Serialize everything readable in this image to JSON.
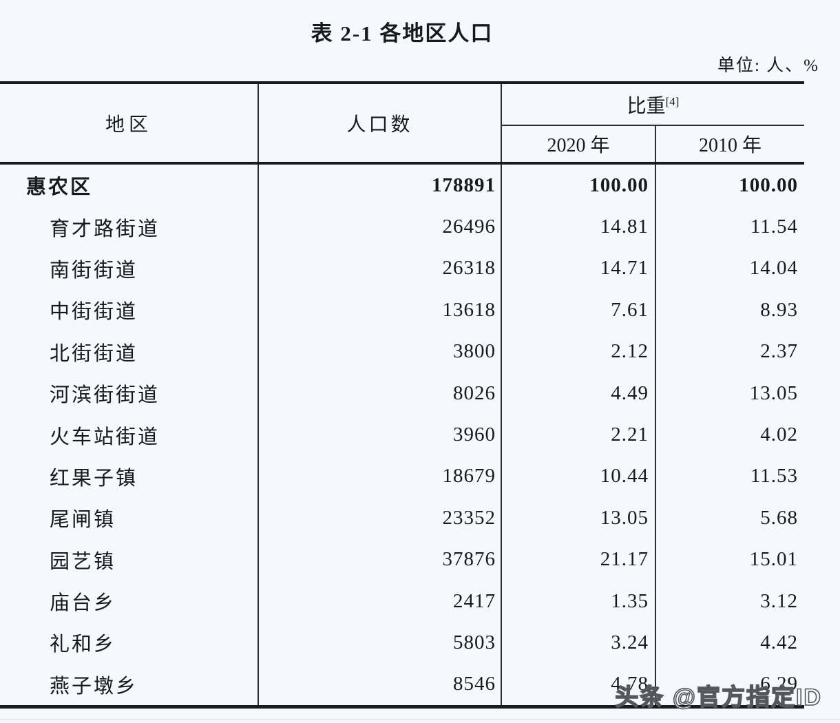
{
  "title": "表 2-1  各地区人口",
  "unit_label": "单位: 人、%",
  "table": {
    "headers": {
      "region": "地区",
      "population": "人口数",
      "share": "比重",
      "share_superscript": "[4]",
      "year_2020": "2020 年",
      "year_2010": "2010 年"
    },
    "rows": [
      {
        "region": "惠农区",
        "population": "178891",
        "share_2020": "100.00",
        "share_2010": "100.00",
        "bold": true
      },
      {
        "region": "育才路街道",
        "population": "26496",
        "share_2020": "14.81",
        "share_2010": "11.54"
      },
      {
        "region": "南街街道",
        "population": "26318",
        "share_2020": "14.71",
        "share_2010": "14.04"
      },
      {
        "region": "中街街道",
        "population": "13618",
        "share_2020": "7.61",
        "share_2010": "8.93"
      },
      {
        "region": "北街街道",
        "population": "3800",
        "share_2020": "2.12",
        "share_2010": "2.37"
      },
      {
        "region": "河滨街街道",
        "population": "8026",
        "share_2020": "4.49",
        "share_2010": "13.05"
      },
      {
        "region": "火车站街道",
        "population": "3960",
        "share_2020": "2.21",
        "share_2010": "4.02"
      },
      {
        "region": "红果子镇",
        "population": "18679",
        "share_2020": "10.44",
        "share_2010": "11.53"
      },
      {
        "region": "尾闸镇",
        "population": "23352",
        "share_2020": "13.05",
        "share_2010": "5.68"
      },
      {
        "region": "园艺镇",
        "population": "37876",
        "share_2020": "21.17",
        "share_2010": "15.01"
      },
      {
        "region": "庙台乡",
        "population": "2417",
        "share_2020": "1.35",
        "share_2010": "3.12"
      },
      {
        "region": "礼和乡",
        "population": "5803",
        "share_2020": "3.24",
        "share_2010": "4.42"
      },
      {
        "region": "燕子墩乡",
        "population": "8546",
        "share_2020": "4.78",
        "share_2010": "6.29"
      }
    ]
  },
  "watermark": "头条 @官方指定ID"
}
